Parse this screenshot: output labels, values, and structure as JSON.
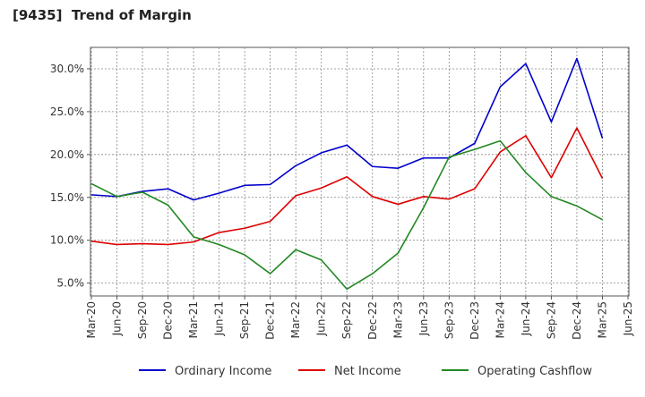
{
  "chart_data": {
    "type": "line",
    "title": "[9435]  Trend of Margin",
    "xlabel": "",
    "ylabel": "",
    "x": [
      "Mar-20",
      "Jun-20",
      "Sep-20",
      "Dec-20",
      "Mar-21",
      "Jun-21",
      "Sep-21",
      "Dec-21",
      "Mar-22",
      "Jun-22",
      "Sep-22",
      "Dec-22",
      "Mar-23",
      "Jun-23",
      "Sep-23",
      "Dec-23",
      "Mar-24",
      "Jun-24",
      "Sep-24",
      "Dec-24",
      "Mar-25",
      "Jun-25"
    ],
    "ylim": [
      3.5,
      32.5
    ],
    "yticks": [
      5,
      10,
      15,
      20,
      25,
      30
    ],
    "ytick_labels": [
      "5.0%",
      "10.0%",
      "15.0%",
      "20.0%",
      "25.0%",
      "30.0%"
    ],
    "grid": true,
    "legend_position": "bottom",
    "series": [
      {
        "name": "Ordinary Income",
        "color": "#0000cc",
        "values": [
          15.3,
          15.1,
          15.7,
          16.0,
          14.7,
          15.5,
          16.4,
          16.5,
          18.7,
          20.2,
          21.1,
          18.6,
          18.4,
          19.6,
          19.6,
          21.3,
          27.9,
          30.6,
          23.8,
          31.2,
          21.9,
          null
        ]
      },
      {
        "name": "Net Income",
        "color": "#dd0000",
        "values": [
          9.9,
          9.5,
          9.6,
          9.5,
          9.8,
          10.9,
          11.4,
          12.2,
          15.2,
          16.1,
          17.4,
          15.1,
          14.2,
          15.1,
          14.8,
          16.0,
          20.3,
          22.2,
          17.3,
          23.1,
          17.2,
          null
        ]
      },
      {
        "name": "Operating Cashflow",
        "color": "#228822",
        "values": [
          16.6,
          15.1,
          15.6,
          14.1,
          10.4,
          9.5,
          8.3,
          6.1,
          8.9,
          7.7,
          4.3,
          6.1,
          8.5,
          13.8,
          19.7,
          20.6,
          21.6,
          17.9,
          15.1,
          14.0,
          12.4,
          null
        ]
      }
    ]
  }
}
